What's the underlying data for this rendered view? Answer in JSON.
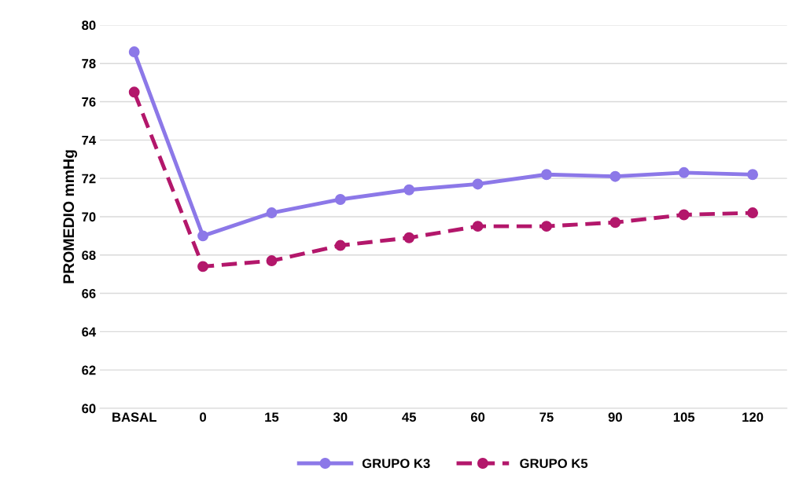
{
  "chart_data": {
    "type": "line",
    "ylabel": "PROMEDIO mmHg",
    "categories": [
      "BASAL",
      "0",
      "15",
      "30",
      "45",
      "60",
      "75",
      "90",
      "105",
      "120"
    ],
    "series": [
      {
        "name": "GRUPO K3",
        "color": "#8c78e8",
        "line_style": "solid",
        "values": [
          78.6,
          69.0,
          70.2,
          70.9,
          71.4,
          71.7,
          72.2,
          72.1,
          72.3,
          72.2
        ]
      },
      {
        "name": "GRUPO K5",
        "color": "#b3176b",
        "line_style": "dashed",
        "values": [
          76.5,
          67.4,
          67.7,
          68.5,
          68.9,
          69.5,
          69.5,
          69.7,
          70.1,
          70.2
        ]
      }
    ],
    "ylim": [
      60,
      80
    ],
    "yticks": [
      60,
      62,
      64,
      66,
      68,
      70,
      72,
      74,
      76,
      78,
      80
    ],
    "grid": "y",
    "legend": "bottom",
    "marker": "circle"
  }
}
